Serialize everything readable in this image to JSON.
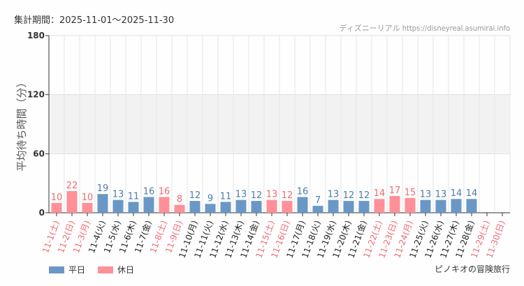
{
  "header": {
    "period": "集計期間：2025-11-01～2025-11-30",
    "credit": "ディズニーリアル https://disneyreal.asumirai.info"
  },
  "footer": {
    "attraction": "ピノキオの冒険旅行"
  },
  "legend": [
    {
      "label": "平日",
      "color": "#6a98c6"
    },
    {
      "label": "休日",
      "color": "#ff9098"
    }
  ],
  "chart_data": {
    "type": "bar",
    "ylabel": "平均待ち時間（分）",
    "ylim": [
      0,
      180
    ],
    "yticks": [
      0,
      60,
      120,
      180
    ],
    "grid": true,
    "legend_position": "bottom-left",
    "categories": [
      "11-1(土)",
      "11-2(日)",
      "11-3(月)",
      "11-4(火)",
      "11-5(水)",
      "11-6(木)",
      "11-7(金)",
      "11-8(土)",
      "11-9(日)",
      "11-10(月)",
      "11-11(火)",
      "11-12(水)",
      "11-13(木)",
      "11-14(金)",
      "11-15(土)",
      "11-16(日)",
      "11-17(月)",
      "11-18(火)",
      "11-19(水)",
      "11-20(木)",
      "11-21(金)",
      "11-22(土)",
      "11-23(日)",
      "11-24(月)",
      "11-25(火)",
      "11-26(水)",
      "11-27(木)",
      "11-28(金)",
      "11-29(土)",
      "11-30(日)"
    ],
    "holiday": [
      true,
      true,
      true,
      false,
      false,
      false,
      false,
      true,
      true,
      false,
      false,
      false,
      false,
      false,
      true,
      true,
      false,
      false,
      false,
      false,
      false,
      true,
      true,
      true,
      false,
      false,
      false,
      false,
      true,
      true
    ],
    "values": [
      10,
      22,
      10,
      19,
      13,
      11,
      16,
      16,
      8,
      12,
      9,
      11,
      13,
      12,
      13,
      12,
      16,
      7,
      13,
      12,
      12,
      14,
      17,
      15,
      13,
      13,
      14,
      14,
      null,
      null
    ],
    "colors": {
      "weekday": "#6a98c6",
      "holiday": "#ff9098",
      "weekday_label": "#4a7cb0",
      "holiday_label": "#f06a75"
    }
  }
}
